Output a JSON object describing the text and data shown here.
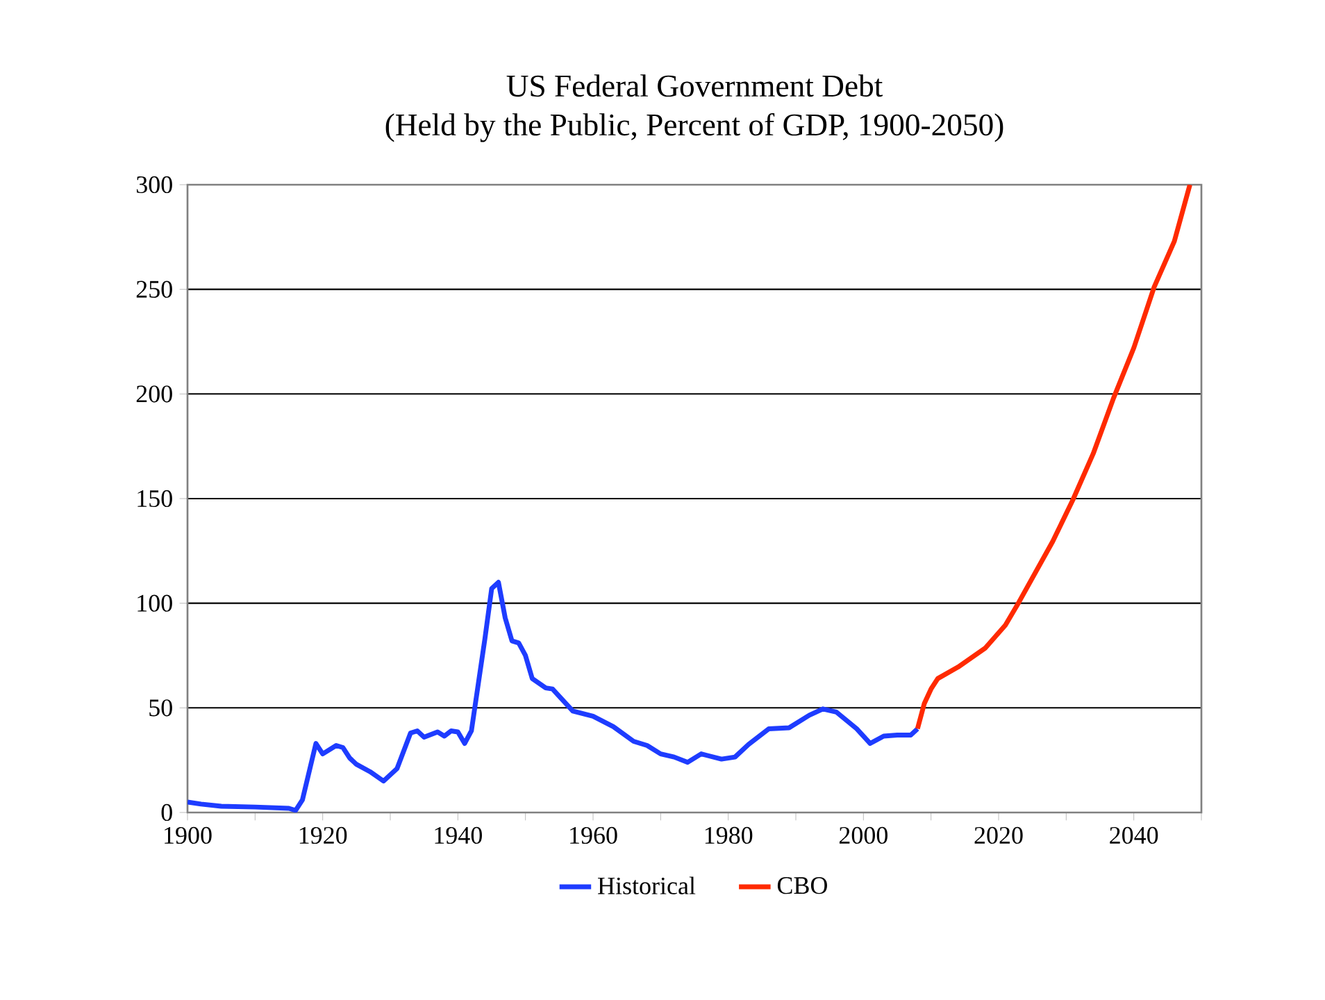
{
  "chart_data": {
    "type": "line",
    "title": "US Federal Government Debt",
    "subtitle": "(Held by the Public, Percent of GDP, 1900-2050)",
    "series": [
      {
        "name": "Historical",
        "color": "#1e3cff",
        "x": [
          1900,
          1902,
          1905,
          1910,
          1915,
          1916,
          1917,
          1919,
          1920,
          1922,
          1923,
          1924,
          1925,
          1927,
          1929,
          1931,
          1933,
          1934,
          1935,
          1937,
          1938,
          1939,
          1940,
          1941,
          1942,
          1944,
          1945,
          1946,
          1947,
          1948,
          1949,
          1950,
          1951,
          1953,
          1954,
          1957,
          1960,
          1963,
          1966,
          1968,
          1970,
          1972,
          1974,
          1976,
          1979,
          1981,
          1983,
          1986,
          1989,
          1992,
          1994,
          1996,
          1999,
          2001,
          2003,
          2005,
          2007,
          2008
        ],
        "values": [
          5,
          4,
          3,
          2.6,
          2,
          1,
          6,
          33,
          28,
          32,
          31,
          26,
          23,
          19.5,
          15,
          21,
          38,
          39,
          36,
          38.5,
          36.5,
          39,
          38.5,
          33,
          39,
          83,
          107,
          110,
          93,
          82,
          81,
          75,
          64,
          59.5,
          59,
          48.5,
          46,
          41,
          34,
          32,
          28,
          26.5,
          24,
          28,
          25.5,
          26.5,
          32.5,
          40,
          40.5,
          46.5,
          49.5,
          48,
          40,
          33,
          36.5,
          37,
          37,
          40
        ]
      },
      {
        "name": "CBO",
        "color": "#ff2a00",
        "x": [
          2008,
          2009,
          2010,
          2011,
          2014,
          2018,
          2021,
          2023,
          2028,
          2031,
          2034,
          2037,
          2040,
          2043,
          2046,
          2048.3
        ],
        "values": [
          40,
          52,
          59,
          64,
          69.5,
          78.5,
          89.5,
          100.5,
          129.5,
          149.5,
          171.5,
          198,
          222,
          251,
          273,
          300
        ]
      }
    ],
    "xlim": [
      1900,
      2050
    ],
    "xticks": [
      1900,
      {
        "value": 1910,
        "label": null
      },
      1920,
      {
        "value": 1930,
        "label": null
      },
      1940,
      {
        "value": 1950,
        "label": null
      },
      1960,
      {
        "value": 1970,
        "label": null
      },
      1980,
      {
        "value": 1990,
        "label": null
      },
      2000,
      {
        "value": 2010,
        "label": null
      },
      2020,
      {
        "value": 2030,
        "label": null
      },
      2040,
      {
        "value": 2050,
        "label": null
      }
    ],
    "ylim": [
      0,
      300
    ],
    "yticks": [
      0,
      50,
      100,
      150,
      200,
      250,
      300
    ],
    "grid": "y",
    "legend": "bottom",
    "marker": "none",
    "line_style": "solid"
  }
}
